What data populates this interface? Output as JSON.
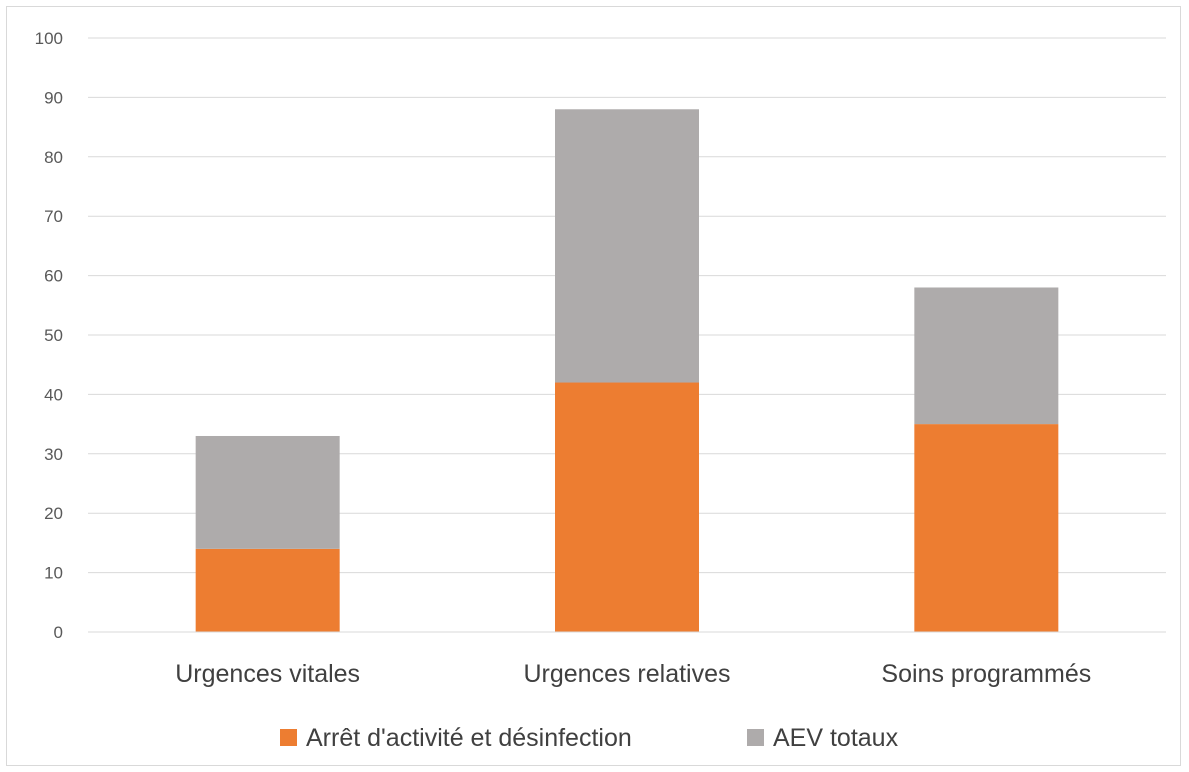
{
  "chart_data": {
    "type": "bar",
    "stacked": true,
    "categories": [
      "Urgences vitales",
      "Urgences relatives",
      "Soins programmés"
    ],
    "series": [
      {
        "name": "Arrêt d'activité et désinfection",
        "values": [
          14,
          42,
          35
        ],
        "color": "#ED7D31"
      },
      {
        "name": "AEV totaux",
        "values": [
          19,
          46,
          23
        ],
        "color": "#AEABAB"
      }
    ],
    "yticks": [
      0,
      10,
      20,
      30,
      40,
      50,
      60,
      70,
      80,
      90,
      100
    ],
    "ylim": [
      0,
      100
    ],
    "grid": true,
    "legend": "bottom",
    "title": "",
    "xlabel": "",
    "ylabel": ""
  }
}
